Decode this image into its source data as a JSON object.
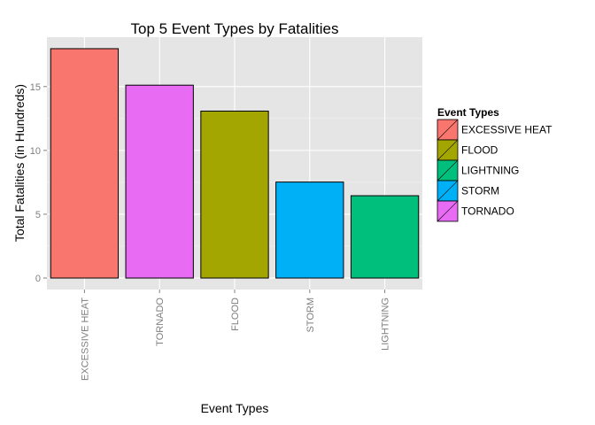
{
  "chart_data": {
    "type": "bar",
    "title": "Top 5 Event Types by Fatalities",
    "xlabel": "Event Types",
    "ylabel": "Total Fatalities (in Hundreds)",
    "categories": [
      "EXCESSIVE HEAT",
      "TORNADO",
      "FLOOD",
      "STORM",
      "LIGHTNING"
    ],
    "values": [
      17.97,
      15.11,
      13.08,
      7.52,
      6.45
    ],
    "bar_colors": [
      "#F8766D",
      "#E76BF3",
      "#A3A500",
      "#00B0F6",
      "#00BF7D"
    ],
    "ylim": [
      -0.9,
      18.87
    ],
    "yticks": [
      0,
      5,
      10,
      15
    ],
    "grid": true,
    "panel_background": "#E5E5E5",
    "legend": {
      "title": "Event Types",
      "position": "right",
      "entries": [
        {
          "label": "EXCESSIVE HEAT",
          "color": "#F8766D"
        },
        {
          "label": "FLOOD",
          "color": "#A3A500"
        },
        {
          "label": "LIGHTNING",
          "color": "#00BF7D"
        },
        {
          "label": "STORM",
          "color": "#00B0F6"
        },
        {
          "label": "TORNADO",
          "color": "#E76BF3"
        }
      ]
    }
  }
}
